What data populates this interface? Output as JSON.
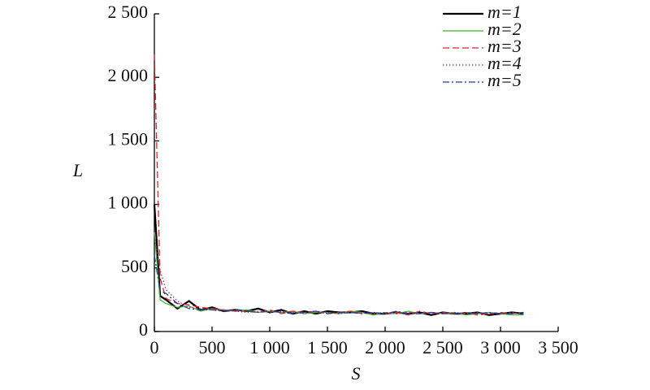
{
  "chart_data": {
    "type": "line",
    "x_label": "S",
    "y_label": "L",
    "x": [
      0,
      50,
      100,
      200,
      300,
      400,
      500,
      600,
      700,
      800,
      900,
      1000,
      1100,
      1200,
      1300,
      1400,
      1500,
      1600,
      1700,
      1800,
      1900,
      2000,
      2100,
      2200,
      2300,
      2400,
      2500,
      2600,
      2700,
      2800,
      2900,
      3000,
      3100,
      3200
    ],
    "series": [
      {
        "name": "m=1",
        "color": "#000000",
        "linestyle": "solid",
        "width": 2.2,
        "values": [
          1000,
          280,
          250,
          180,
          240,
          170,
          190,
          160,
          170,
          160,
          180,
          150,
          170,
          140,
          160,
          140,
          160,
          150,
          150,
          160,
          140,
          140,
          150,
          140,
          150,
          130,
          150,
          140,
          140,
          150,
          130,
          140,
          150,
          140
        ]
      },
      {
        "name": "m=2",
        "color": "#3cb521",
        "linestyle": "solid",
        "width": 1.2,
        "values": [
          780,
          250,
          220,
          190,
          200,
          160,
          180,
          170,
          160,
          170,
          150,
          160,
          150,
          160,
          140,
          150,
          150,
          140,
          160,
          150,
          130,
          150,
          140,
          160,
          140,
          150,
          140,
          150,
          130,
          140,
          150,
          140,
          130,
          130
        ]
      },
      {
        "name": "m=3",
        "color": "#e0232b",
        "linestyle": "dashed",
        "width": 1.3,
        "values": [
          2180,
          420,
          260,
          220,
          210,
          190,
          180,
          170,
          160,
          160,
          150,
          170,
          140,
          160,
          150,
          160,
          140,
          150,
          160,
          140,
          150,
          140,
          150,
          130,
          160,
          140,
          150,
          140,
          150,
          130,
          140,
          150,
          140,
          150
        ]
      },
      {
        "name": "m=4",
        "color": "#9b2f9e",
        "linestyle": "dotted",
        "width": 1.3,
        "values": [
          750,
          480,
          330,
          240,
          190,
          180,
          170,
          170,
          160,
          150,
          160,
          150,
          160,
          150,
          140,
          160,
          150,
          140,
          150,
          150,
          140,
          150,
          140,
          150,
          140,
          150,
          140,
          150,
          140,
          150,
          140,
          140,
          150,
          140
        ]
      },
      {
        "name": "m=5",
        "color": "#1f3f9e",
        "linestyle": "dashdot",
        "width": 1.3,
        "values": [
          600,
          320,
          300,
          220,
          180,
          170,
          170,
          160,
          170,
          160,
          150,
          160,
          150,
          140,
          150,
          160,
          140,
          150,
          150,
          140,
          150,
          140,
          160,
          140,
          140,
          150,
          140,
          140,
          150,
          140,
          150,
          140,
          140,
          150
        ]
      }
    ],
    "xlim": [
      0,
      3500
    ],
    "xticks": [
      0,
      500,
      {
        "value": 1000,
        "label": "1 000"
      },
      {
        "value": 1500,
        "label": "1 500"
      },
      {
        "value": 2000,
        "label": "2 000"
      },
      {
        "value": 2500,
        "label": "2 500"
      },
      {
        "value": 3000,
        "label": "3 000"
      },
      {
        "value": 3500,
        "label": "3 500"
      }
    ],
    "ylim": [
      0,
      2500
    ],
    "yticks": [
      0,
      500,
      {
        "value": 1000,
        "label": "1 000"
      },
      {
        "value": 1500,
        "label": "1 500"
      },
      {
        "value": 2000,
        "label": "2 000"
      },
      {
        "value": 2500,
        "label": "2 500"
      }
    ],
    "grid": false,
    "legend": "upper right"
  }
}
